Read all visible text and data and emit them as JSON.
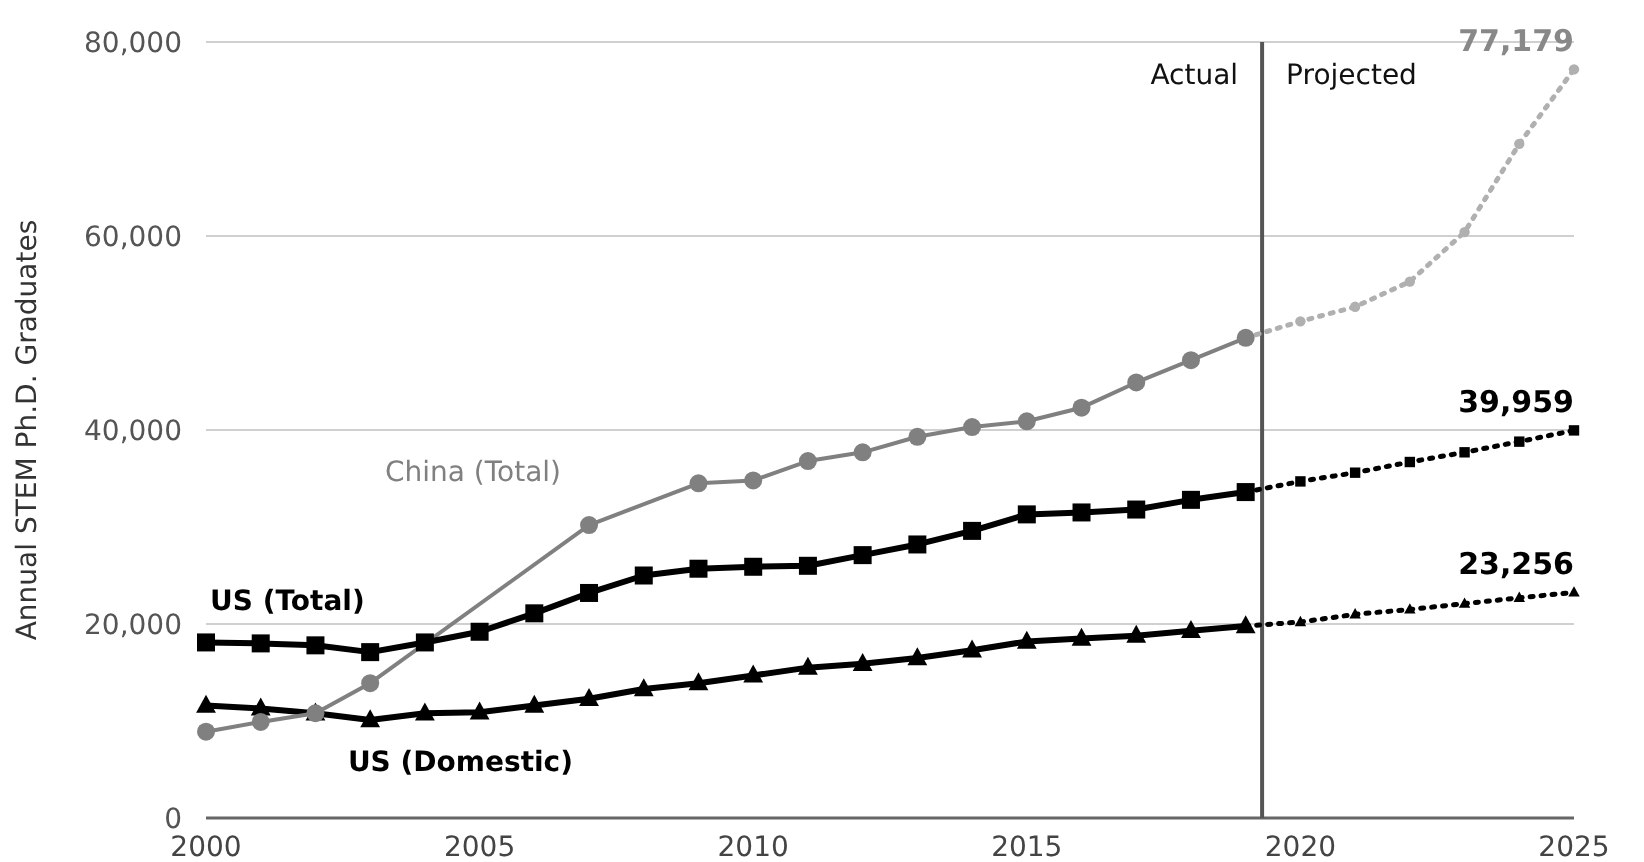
{
  "chart_data": {
    "type": "line",
    "ylabel": "Annual STEM Ph.D. Graduates",
    "xlim": [
      2000,
      2025
    ],
    "xticks": [
      2000,
      2005,
      2010,
      2015,
      2020,
      2025
    ],
    "ylim": [
      0,
      80000
    ],
    "yticks": [
      {
        "value": 0,
        "label": "0"
      },
      {
        "value": 20000,
        "label": "20,000"
      },
      {
        "value": 40000,
        "label": "40,000"
      },
      {
        "value": 60000,
        "label": "60,000"
      },
      {
        "value": 80000,
        "label": "80,000"
      }
    ],
    "grid": "y",
    "ref_lines": [
      {
        "axis": "x",
        "value": 2019.3,
        "color": "#555555"
      }
    ],
    "annotations": [
      "Actual",
      "Projected"
    ],
    "series": [
      {
        "name": "US (Total)",
        "color": "#000000",
        "marker": "square",
        "line_style": "solid",
        "x": [
          2000,
          2001,
          2002,
          2003,
          2004,
          2005,
          2006,
          2007,
          2008,
          2009,
          2010,
          2011,
          2012,
          2013,
          2014,
          2015,
          2016,
          2017,
          2018,
          2019
        ],
        "values": [
          18100,
          18000,
          17800,
          17100,
          18100,
          19200,
          21100,
          23200,
          25000,
          25700,
          25900,
          26000,
          27100,
          28200,
          29600,
          31300,
          31500,
          31800,
          32800,
          33600
        ]
      },
      {
        "name": "China (Total)",
        "color": "#808080",
        "marker": "circle",
        "line_style": "solid",
        "x": [
          2000,
          2001,
          2002,
          2003,
          2007,
          2009,
          2010,
          2011,
          2012,
          2013,
          2014,
          2015,
          2016,
          2017,
          2018,
          2019
        ],
        "values": [
          8900,
          9900,
          10800,
          13900,
          30200,
          34500,
          34800,
          36800,
          37700,
          39300,
          40300,
          40900,
          42300,
          44900,
          47200,
          49500
        ]
      },
      {
        "name": "US (Domestic)",
        "color": "#000000",
        "marker": "triangle",
        "line_style": "solid",
        "x": [
          2000,
          2001,
          2002,
          2003,
          2004,
          2005,
          2006,
          2007,
          2008,
          2009,
          2010,
          2011,
          2012,
          2013,
          2014,
          2015,
          2016,
          2017,
          2018,
          2019
        ],
        "values": [
          11600,
          11300,
          10800,
          10100,
          10800,
          10900,
          11600,
          12300,
          13300,
          13900,
          14700,
          15500,
          15900,
          16500,
          17300,
          18200,
          18500,
          18800,
          19300,
          19800
        ]
      },
      {
        "color": "#000000",
        "marker": "square",
        "line_style": "dotted",
        "x": [
          2019,
          2020,
          2021,
          2022,
          2023,
          2024,
          2025
        ],
        "values": [
          33600,
          34700,
          35600,
          36700,
          37700,
          38800,
          39959
        ],
        "value_labels": [
          null,
          null,
          null,
          null,
          null,
          null,
          "39,959"
        ]
      },
      {
        "color": "#b0b0b0",
        "marker": "circle",
        "line_style": "dotted",
        "x": [
          2019,
          2020,
          2021,
          2022,
          2023,
          2024,
          2025
        ],
        "values": [
          49500,
          51200,
          52700,
          55300,
          60400,
          69500,
          77179
        ],
        "value_labels": [
          null,
          null,
          null,
          null,
          null,
          null,
          "77,179"
        ]
      },
      {
        "color": "#000000",
        "marker": "triangle",
        "line_style": "dotted",
        "x": [
          2019,
          2020,
          2021,
          2022,
          2023,
          2024,
          2025
        ],
        "values": [
          19800,
          20200,
          21000,
          21500,
          22100,
          22700,
          23256
        ],
        "value_labels": [
          null,
          null,
          null,
          null,
          null,
          null,
          "23,256"
        ]
      }
    ]
  }
}
